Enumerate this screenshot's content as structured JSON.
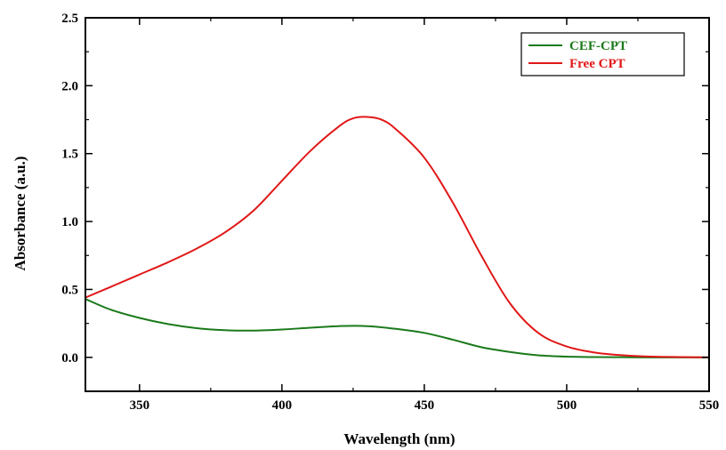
{
  "chart_data": {
    "type": "line",
    "title": "",
    "xlabel": "Wavelength (nm)",
    "ylabel": "Absorbance (a.u.)",
    "xlim": [
      331,
      550
    ],
    "ylim": [
      -0.25,
      2.5
    ],
    "xticks": [
      350,
      400,
      450,
      500,
      550
    ],
    "xtick_labels": [
      "350",
      "400",
      "450",
      "500",
      "550"
    ],
    "yticks": [
      0.0,
      0.5,
      1.0,
      1.5,
      2.0,
      2.5
    ],
    "ytick_labels": [
      "0.0",
      "0.5",
      "1.0",
      "1.5",
      "2.0",
      "2.5"
    ],
    "grid": false,
    "legend_position": "top-right",
    "series": [
      {
        "name": "CEF-CPT",
        "color": "#1a7a1a",
        "points": [
          [
            331,
            0.43
          ],
          [
            340,
            0.35
          ],
          [
            350,
            0.29
          ],
          [
            360,
            0.245
          ],
          [
            370,
            0.215
          ],
          [
            380,
            0.2
          ],
          [
            390,
            0.197
          ],
          [
            400,
            0.205
          ],
          [
            410,
            0.218
          ],
          [
            420,
            0.23
          ],
          [
            430,
            0.23
          ],
          [
            440,
            0.21
          ],
          [
            450,
            0.18
          ],
          [
            460,
            0.13
          ],
          [
            470,
            0.075
          ],
          [
            480,
            0.04
          ],
          [
            490,
            0.015
          ],
          [
            500,
            0.005
          ],
          [
            510,
            0.002
          ],
          [
            520,
            0.001
          ],
          [
            530,
            0.0
          ],
          [
            540,
            0.0
          ],
          [
            550,
            0.0
          ]
        ]
      },
      {
        "name": "Free CPT",
        "color": "#e01818",
        "points": [
          [
            331,
            0.44
          ],
          [
            340,
            0.52
          ],
          [
            350,
            0.61
          ],
          [
            360,
            0.7
          ],
          [
            370,
            0.8
          ],
          [
            380,
            0.92
          ],
          [
            390,
            1.08
          ],
          [
            400,
            1.3
          ],
          [
            410,
            1.52
          ],
          [
            420,
            1.7
          ],
          [
            425,
            1.76
          ],
          [
            430,
            1.77
          ],
          [
            435,
            1.75
          ],
          [
            440,
            1.68
          ],
          [
            450,
            1.47
          ],
          [
            460,
            1.14
          ],
          [
            470,
            0.75
          ],
          [
            480,
            0.4
          ],
          [
            490,
            0.18
          ],
          [
            500,
            0.08
          ],
          [
            510,
            0.035
          ],
          [
            520,
            0.015
          ],
          [
            530,
            0.005
          ],
          [
            540,
            0.002
          ],
          [
            550,
            0.0
          ]
        ]
      }
    ]
  }
}
